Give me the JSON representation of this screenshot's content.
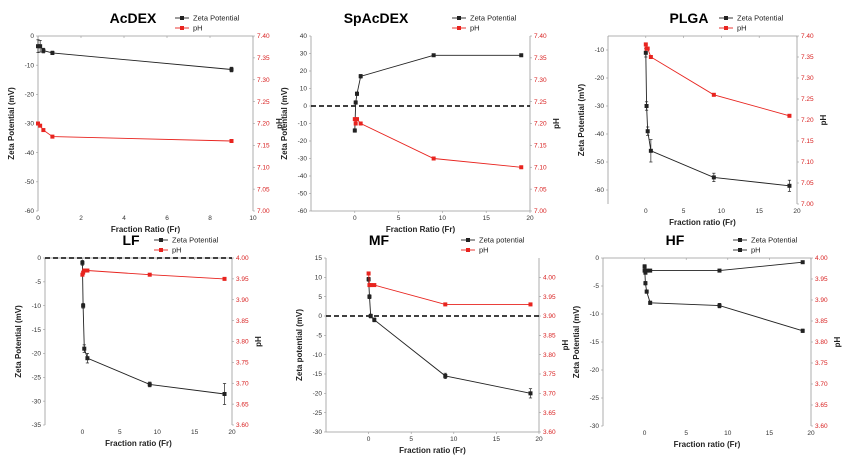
{
  "chart_data": [
    {
      "type": "line",
      "title": "AcDEX",
      "xlabel": "Fraction Ratio (Fr)",
      "ylabel": "Zeta Potential (mV)",
      "y2label": "pH",
      "xlim": [
        0,
        10
      ],
      "xticks": [
        0,
        2,
        4,
        6,
        8,
        10
      ],
      "ylim": [
        -60,
        0
      ],
      "yticks": [
        0,
        -10,
        -20,
        -30,
        -40,
        -50,
        -60
      ],
      "y2lim": [
        7.0,
        7.4
      ],
      "y2ticks": [
        "7.40",
        "7.35",
        "7.30",
        "7.25",
        "7.20",
        "7.15",
        "7.10",
        "7.05",
        "7.00"
      ],
      "baseline": null,
      "legend": {
        "zeta": "Zeta Potential",
        "ph": "pH"
      },
      "series": [
        {
          "name": "Zeta Potential",
          "axis": "left",
          "color": "#222222",
          "x": [
            0,
            0.1,
            0.25,
            0.67,
            9
          ],
          "y": [
            -3.5,
            -3.5,
            -5,
            -5.8,
            -11.5
          ],
          "err": [
            2.2,
            2.0,
            0.8,
            0.6,
            0.8
          ]
        },
        {
          "name": "pH",
          "axis": "right",
          "color": "#e8241f",
          "x": [
            0,
            0.1,
            0.25,
            0.67,
            9
          ],
          "y": [
            7.2,
            7.195,
            7.185,
            7.17,
            7.16
          ]
        }
      ]
    },
    {
      "type": "line",
      "title": "SpAcDEX",
      "xlabel": "Fraction Ratio (Fr)",
      "ylabel": "Zeta Potential (mV)",
      "y2label": "pH",
      "xlim": [
        -5,
        20
      ],
      "xticks": [
        0,
        5,
        10,
        15,
        20
      ],
      "ylim": [
        -60,
        40
      ],
      "yticks": [
        40,
        30,
        20,
        10,
        0,
        -10,
        -20,
        -30,
        -40,
        -50,
        -60
      ],
      "y2lim": [
        7.0,
        7.4
      ],
      "y2ticks": [
        "7.40",
        "7.35",
        "7.30",
        "7.25",
        "7.20",
        "7.15",
        "7.10",
        "7.05",
        "7.00"
      ],
      "baseline": 0,
      "legend": {
        "zeta": "Zeta Potential",
        "ph": "pH"
      },
      "series": [
        {
          "name": "Zeta Potential",
          "axis": "left",
          "color": "#222222",
          "x": [
            0,
            0.1,
            0.25,
            0.67,
            9,
            19
          ],
          "y": [
            -14,
            2,
            7,
            17,
            29,
            29
          ],
          "err": [
            1,
            1,
            1,
            1,
            0.5,
            0.5
          ]
        },
        {
          "name": "pH",
          "axis": "right",
          "color": "#e8241f",
          "x": [
            0,
            0.1,
            0.25,
            0.67,
            9,
            19
          ],
          "y": [
            7.21,
            7.2,
            7.21,
            7.2,
            7.12,
            7.1
          ]
        }
      ]
    },
    {
      "type": "line",
      "title": "PLGA",
      "xlabel": "Fraction ratio (Fr)",
      "ylabel": "Zeta Potential (mV)",
      "y2label": "pH",
      "xlim": [
        -5,
        20
      ],
      "xticks": [
        0,
        5,
        10,
        15,
        20
      ],
      "ylim": [
        -65,
        -5
      ],
      "yticks": [
        -10,
        -20,
        -30,
        -40,
        -50,
        -60
      ],
      "y2lim": [
        7.0,
        7.4
      ],
      "y2ticks": [
        "7.40",
        "7.35",
        "7.30",
        "7.25",
        "7.20",
        "7.15",
        "7.10",
        "7.05",
        "7.00"
      ],
      "baseline": null,
      "legend": {
        "zeta": "Zeta Potential",
        "ph": "pH"
      },
      "series": [
        {
          "name": "Zeta Potential",
          "axis": "left",
          "color": "#222222",
          "x": [
            0,
            0.1,
            0.25,
            0.67,
            9,
            19
          ],
          "y": [
            -11,
            -30,
            -39,
            -46,
            -55.5,
            -58.5
          ],
          "err": [
            1.5,
            1.5,
            1.5,
            4,
            1.5,
            2
          ]
        },
        {
          "name": "pH",
          "axis": "right",
          "color": "#e8241f",
          "x": [
            0,
            0.1,
            0.25,
            0.67,
            9,
            19
          ],
          "y": [
            7.38,
            7.37,
            7.37,
            7.35,
            7.26,
            7.21
          ]
        }
      ]
    },
    {
      "type": "line",
      "title": "LF",
      "xlabel": "Fraction ratio (Fr)",
      "ylabel": "Zeta Potential (mV)",
      "y2label": "pH",
      "xlim": [
        -5,
        20
      ],
      "xticks": [
        0,
        5,
        10,
        15,
        20
      ],
      "ylim": [
        -35,
        0
      ],
      "yticks": [
        0,
        -5,
        -10,
        -15,
        -20,
        -25,
        -30,
        -35
      ],
      "y2lim": [
        3.6,
        4.0
      ],
      "y2ticks": [
        "4.00",
        "3.95",
        "3.90",
        "3.85",
        "3.80",
        "3.75",
        "3.70",
        "3.65",
        "3.60"
      ],
      "baseline": 0,
      "legend": {
        "zeta": "Zeta Potential",
        "ph": "pH"
      },
      "series": [
        {
          "name": "Zeta Potential",
          "axis": "left",
          "color": "#222222",
          "x": [
            0,
            0.1,
            0.25,
            0.67,
            9,
            19
          ],
          "y": [
            -1,
            -10,
            -19,
            -21,
            -26.5,
            -28.5
          ],
          "err": [
            0.5,
            0.5,
            0.8,
            1,
            0.5,
            2.2
          ]
        },
        {
          "name": "pH",
          "axis": "right",
          "color": "#e8241f",
          "x": [
            0,
            0.1,
            0.25,
            0.67,
            9,
            19
          ],
          "y": [
            3.96,
            3.965,
            3.97,
            3.97,
            3.96,
            3.95
          ]
        }
      ]
    },
    {
      "type": "line",
      "title": "MF",
      "xlabel": "Fraction ratio (Fr)",
      "ylabel": "Zeta potential (mV)",
      "y2label": "pH",
      "xlim": [
        -5,
        20
      ],
      "xticks": [
        0,
        5,
        10,
        15,
        20
      ],
      "ylim": [
        -30,
        15
      ],
      "yticks": [
        15,
        10,
        5,
        0,
        -5,
        -10,
        -15,
        -20,
        -25,
        -30
      ],
      "y2lim": [
        3.6,
        4.05
      ],
      "y2ticks": [
        "4.00",
        "3.95",
        "3.90",
        "3.85",
        "3.80",
        "3.75",
        "3.70",
        "3.65",
        "3.60"
      ],
      "baseline": 0,
      "legend": {
        "zeta": "Zeta potential",
        "ph": "pH"
      },
      "series": [
        {
          "name": "Zeta potential",
          "axis": "left",
          "color": "#222222",
          "x": [
            0,
            0.1,
            0.25,
            0.67,
            9,
            19
          ],
          "y": [
            9.5,
            5,
            0,
            -1,
            -15.5,
            -20
          ],
          "err": [
            0.5,
            0.5,
            0.5,
            0.5,
            0.7,
            1.2
          ]
        },
        {
          "name": "pH",
          "axis": "right",
          "color": "#e8241f",
          "x": [
            0,
            0.1,
            0.25,
            0.67,
            9,
            19
          ],
          "y": [
            4.01,
            3.98,
            3.98,
            3.98,
            3.93,
            3.93
          ]
        }
      ]
    },
    {
      "type": "line",
      "title": "HF",
      "xlabel": "Fraction ratio (Fr)",
      "ylabel": "Zeta Potential (mV)",
      "y2label": "pH",
      "xlim": [
        -5,
        20
      ],
      "xticks": [
        0,
        5,
        10,
        15,
        20
      ],
      "ylim": [
        -30,
        0
      ],
      "yticks": [
        0,
        -5,
        -10,
        -15,
        -20,
        -25,
        -30
      ],
      "y2lim": [
        3.6,
        4.0
      ],
      "y2ticks": [
        "4.00",
        "3.95",
        "3.90",
        "3.85",
        "3.80",
        "3.75",
        "3.70",
        "3.65",
        "3.60"
      ],
      "baseline": null,
      "legend": {
        "zeta": "Zeta Potential",
        "ph": "pH"
      },
      "series": [
        {
          "name": "Zeta Potential",
          "axis": "left",
          "color": "#222222",
          "x": [
            0,
            0.1,
            0.25,
            0.67,
            9,
            19
          ],
          "y": [
            -1.5,
            -4.5,
            -6,
            -8,
            -8.5,
            -13
          ],
          "err": [
            0.3,
            0.3,
            0.3,
            0.3,
            0.4,
            0.3
          ]
        },
        {
          "name": "pH",
          "axis": "right",
          "color": "#222222",
          "x": [
            0,
            0.1,
            0.25,
            0.67,
            9,
            19
          ],
          "y": [
            3.97,
            3.965,
            3.97,
            3.97,
            3.97,
            3.99
          ]
        }
      ]
    }
  ]
}
